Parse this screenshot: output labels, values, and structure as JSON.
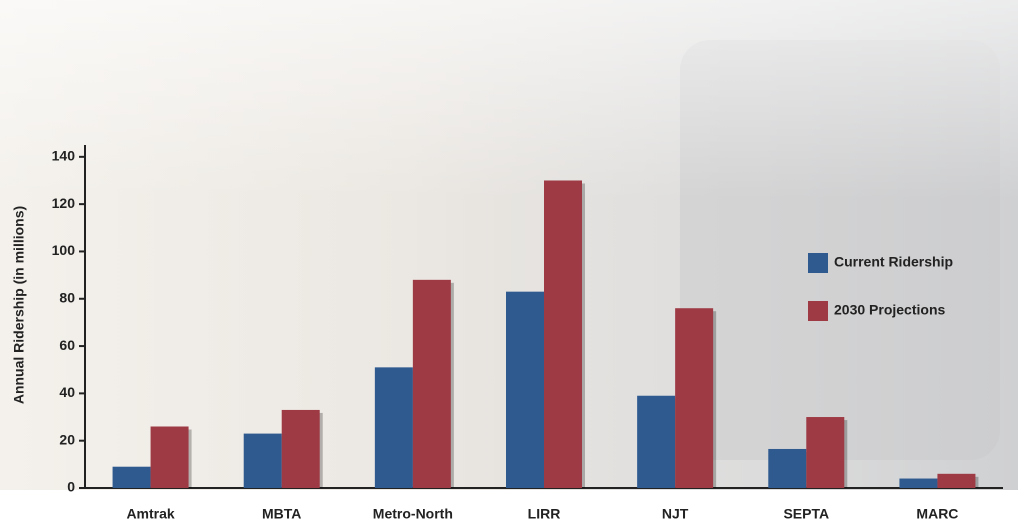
{
  "chart_data": {
    "type": "grouped-bar",
    "y_label": "Annual Ridership (in millions)",
    "categories": [
      "Amtrak",
      "MBTA",
      "Metro-North",
      "LIRR",
      "NJT",
      "SEPTA",
      "MARC"
    ],
    "series": [
      {
        "name": "Current Ridership",
        "color": "#2e5a90",
        "values": [
          9,
          23,
          51,
          83,
          39,
          16.5,
          4
        ]
      },
      {
        "name": "2030 Projections",
        "color": "#9e3a44",
        "values": [
          26,
          33,
          88,
          130,
          76,
          30,
          6
        ]
      }
    ],
    "ylim": [
      0,
      145
    ],
    "yticks": [
      0,
      20,
      40,
      60,
      80,
      100,
      120,
      140
    ],
    "grid": false
  }
}
